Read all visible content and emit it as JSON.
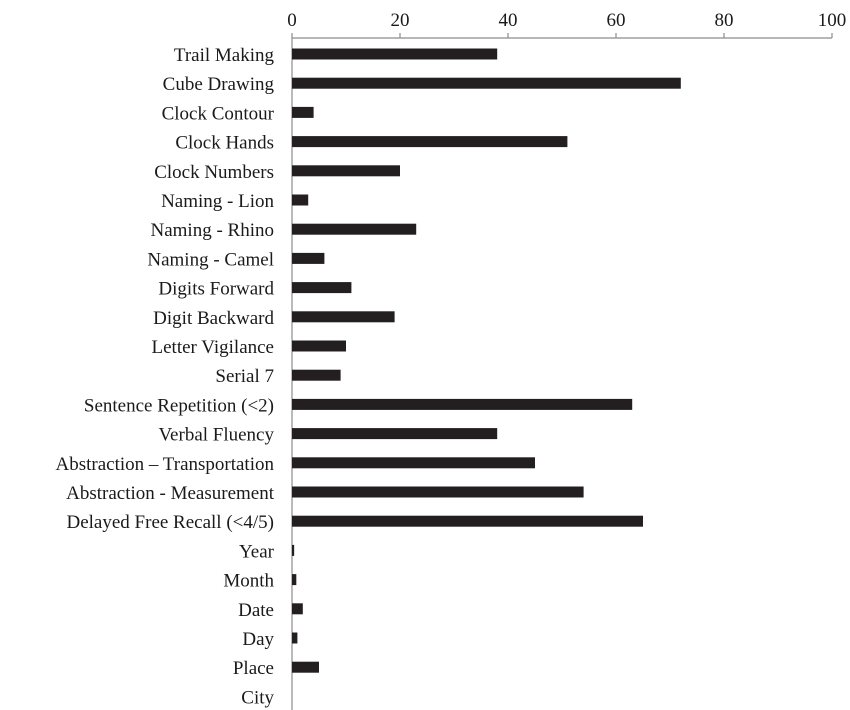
{
  "chart_data": {
    "type": "bar",
    "orientation": "horizontal",
    "title": "",
    "xlabel": "",
    "ylabel": "",
    "xlim": [
      0,
      100
    ],
    "x_ticks": [
      0,
      20,
      40,
      60,
      80,
      100
    ],
    "x_axis_position": "top",
    "grid": false,
    "legend": "none",
    "bar_color": "#231f20",
    "categories": [
      "Trail Making",
      "Cube Drawing",
      "Clock Contour",
      "Clock Hands",
      "Clock Numbers",
      "Naming - Lion",
      "Naming - Rhino",
      "Naming - Camel",
      "Digits Forward",
      "Digit Backward",
      "Letter Vigilance",
      "Serial 7",
      "Sentence Repetition (<2)",
      "Verbal Fluency",
      "Abstraction – Transportation",
      "Abstraction - Measurement",
      "Delayed Free Recall (<4/5)",
      "Year",
      "Month",
      "Date",
      "Day",
      "Place",
      "City"
    ],
    "values": [
      38,
      72,
      4,
      51,
      20,
      3,
      23,
      6,
      11,
      19,
      10,
      9,
      63,
      38,
      45,
      54,
      65,
      0.4,
      0.8,
      2,
      1,
      5,
      0
    ]
  }
}
